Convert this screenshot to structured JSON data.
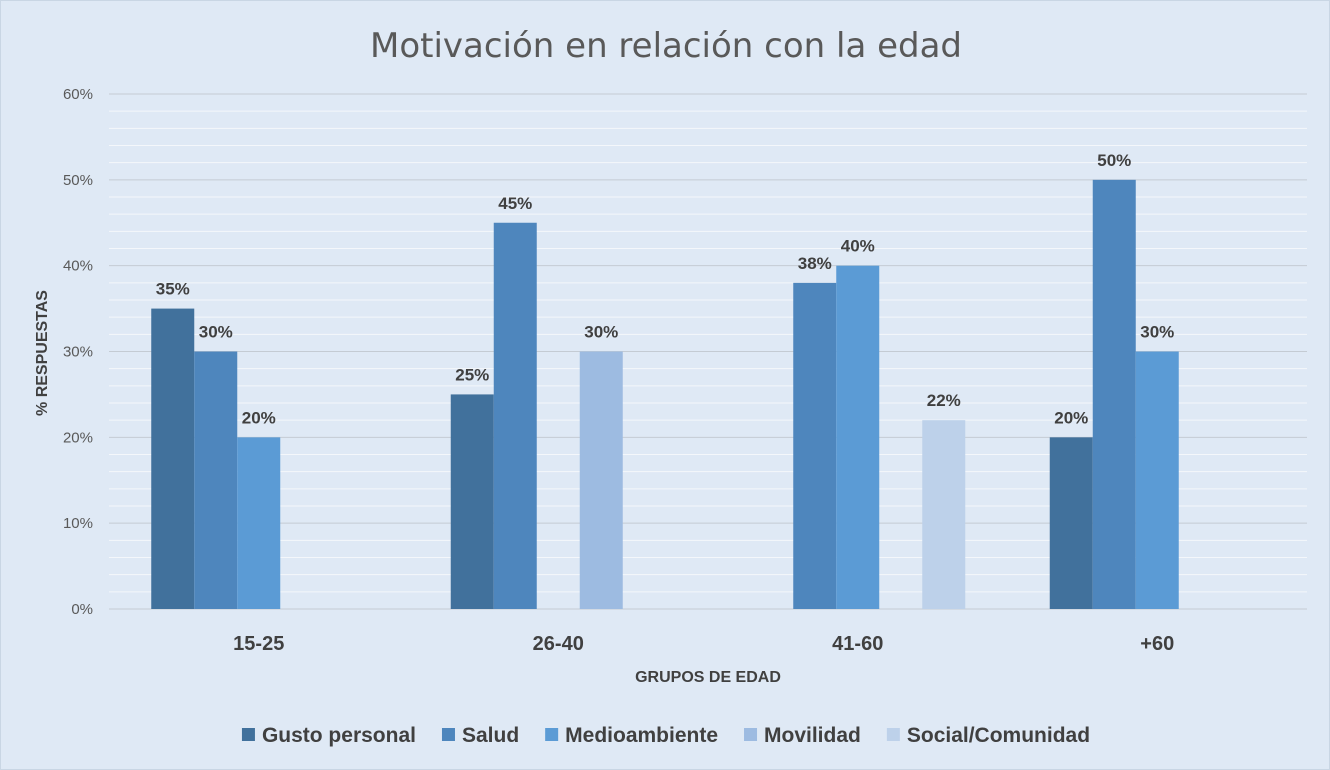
{
  "chart_data": {
    "type": "bar",
    "title": "Motivación en relación con la edad",
    "xlabel": "GRUPOS DE EDAD",
    "ylabel": "% RESPUESTAS",
    "categories": [
      "15-25",
      "26-40",
      "41-60",
      "+60"
    ],
    "series": [
      {
        "name": "Gusto personal",
        "color": "#41719c",
        "values": [
          35,
          25,
          null,
          20
        ],
        "labels": [
          "35%",
          "25%",
          null,
          "20%"
        ]
      },
      {
        "name": "Salud",
        "color": "#4e86bd",
        "values": [
          30,
          45,
          38,
          50
        ],
        "labels": [
          "30%",
          "45%",
          "38%",
          "50%"
        ]
      },
      {
        "name": "Medioambiente",
        "color": "#5b9bd5",
        "values": [
          20,
          null,
          40,
          30
        ],
        "labels": [
          "20%",
          null,
          "40%",
          "30%"
        ]
      },
      {
        "name": "Movilidad",
        "color": "#9dbbe1",
        "values": [
          null,
          30,
          null,
          null
        ],
        "labels": [
          null,
          "30%",
          null,
          null
        ]
      },
      {
        "name": "Social/Comunidad",
        "color": "#bdd1ea",
        "values": [
          null,
          null,
          22,
          null
        ],
        "labels": [
          null,
          null,
          "22%",
          null
        ]
      }
    ],
    "ylim": [
      0,
      60
    ],
    "yticks": [
      "0%",
      "10%",
      "20%",
      "30%",
      "40%",
      "50%",
      "60%"
    ],
    "grid": true,
    "minor_grid": true,
    "legend_position": "bottom"
  }
}
